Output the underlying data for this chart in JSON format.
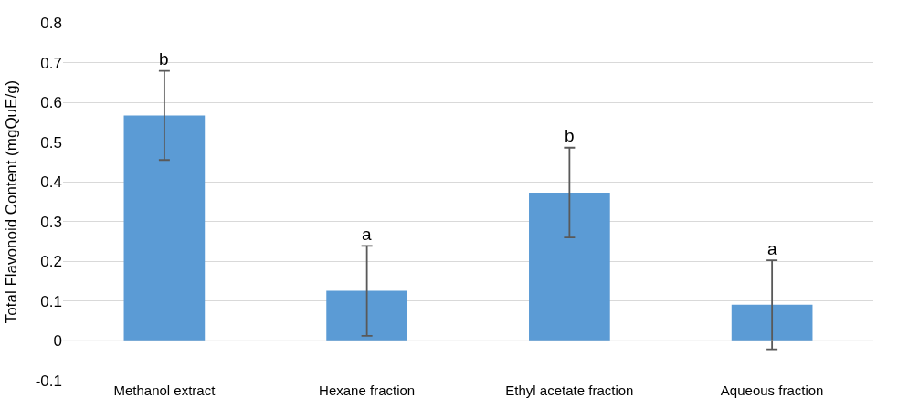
{
  "chart_data": {
    "type": "bar",
    "ylabel": "Total Flavonoid Content (mgQuE/g)",
    "categories": [
      "Methanol extract",
      "Hexane fraction",
      "Ethyl acetate fraction",
      "Aqueous fraction"
    ],
    "values": [
      0.567,
      0.126,
      0.373,
      0.091
    ],
    "errors": [
      0.112,
      0.113,
      0.113,
      0.112
    ],
    "color": "#5b9bd5",
    "ylim": [
      -0.1,
      0.8
    ],
    "yticks": [
      -0.1,
      0,
      0.1,
      0.2,
      0.3,
      0.4,
      0.5,
      0.6,
      0.7,
      0.8
    ],
    "grid": "y",
    "legend": false,
    "annotations": [
      {
        "text": "b",
        "x": "Methanol extract",
        "y": 0.68
      },
      {
        "text": "a",
        "x": "Hexane fraction",
        "y": 0.239
      },
      {
        "text": "b",
        "x": "Ethyl acetate fraction",
        "y": 0.487
      },
      {
        "text": "a",
        "x": "Aqueous fraction",
        "y": 0.203
      }
    ]
  }
}
